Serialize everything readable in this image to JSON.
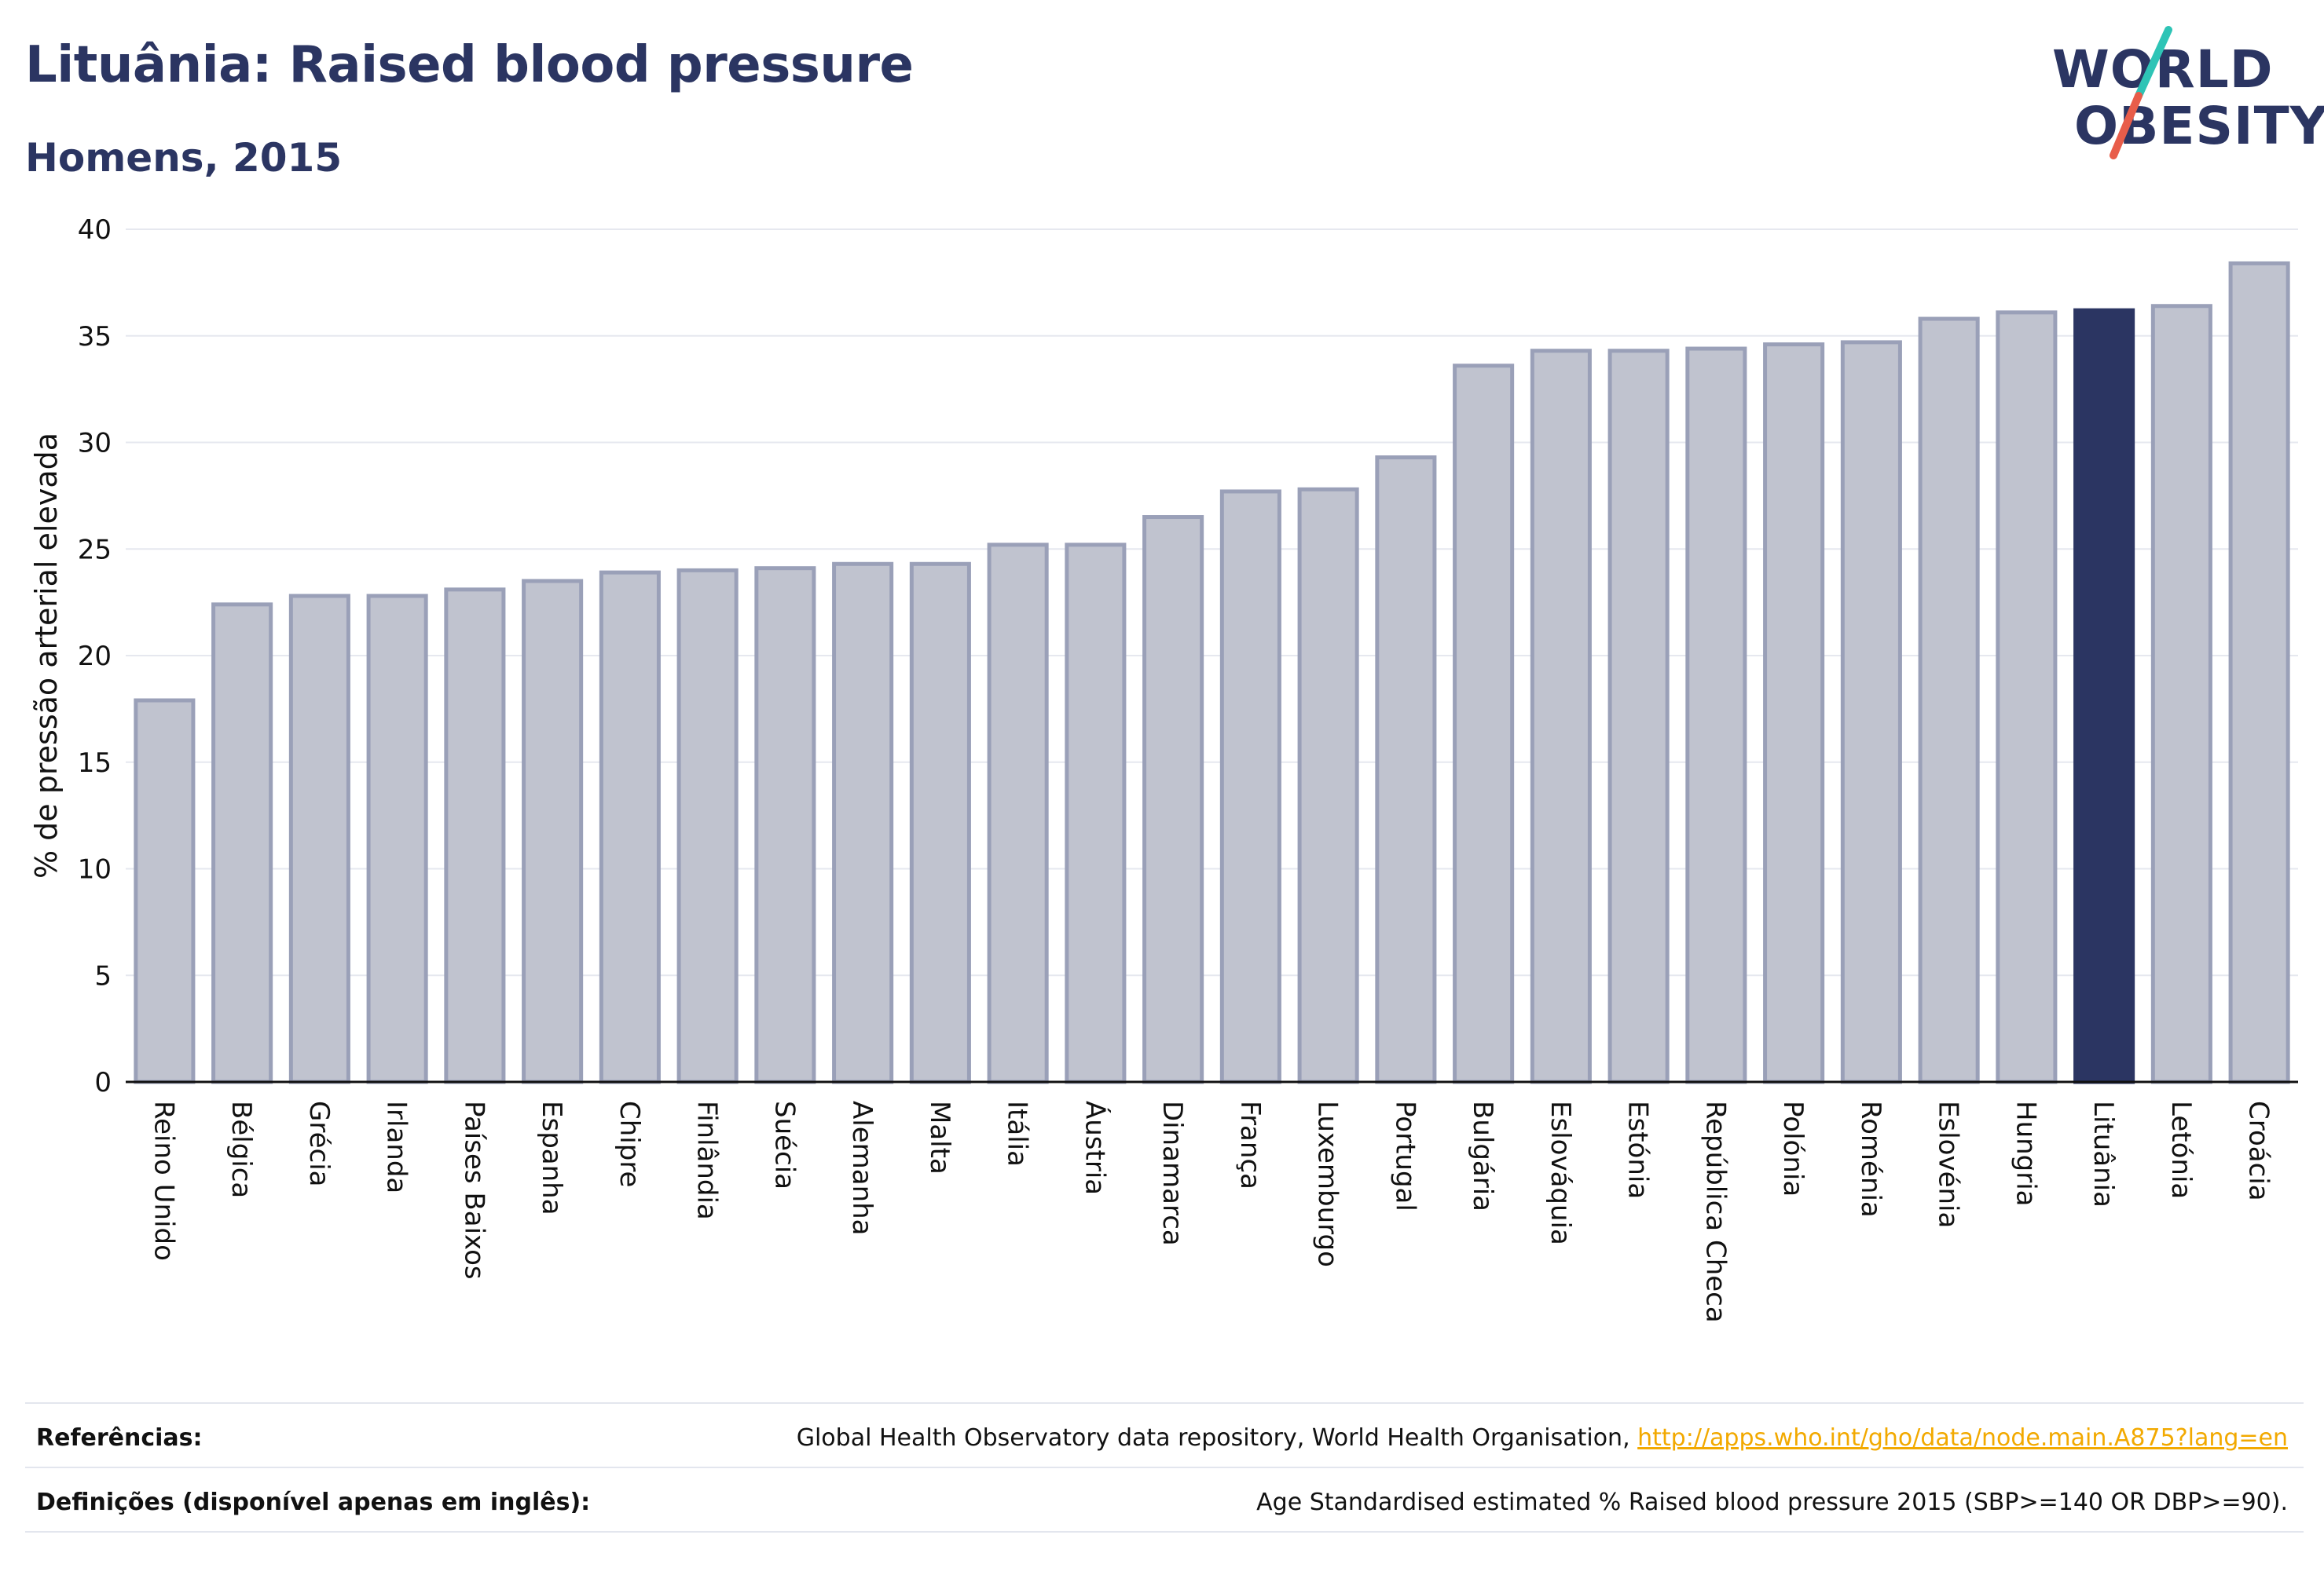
{
  "header": {
    "title": "Lituânia: Raised blood pressure",
    "subtitle": "Homens, 2015"
  },
  "logo": {
    "line1": "WORLD",
    "line2": "OBESITY",
    "accent_colors": [
      "#2ec4b6",
      "#e85d4a"
    ]
  },
  "colors": {
    "bar": "#c0c3cf",
    "bar_border": "#9aa0b8",
    "highlight": "#2b3562",
    "grid": "#e6e8ef",
    "axis": "#111111",
    "title": "#2b3562",
    "link": "#f2a900"
  },
  "chart_data": {
    "type": "bar",
    "ylabel": "% de pressão arterial elevada",
    "ylim": [
      0,
      40
    ],
    "yticks": [
      0,
      5,
      10,
      15,
      20,
      25,
      30,
      35,
      40
    ],
    "grid": true,
    "highlight": "Lituânia",
    "categories": [
      "Reino Unido",
      "Bélgica",
      "Grécia",
      "Irlanda",
      "Países Baixos",
      "Espanha",
      "Chipre",
      "Finlândia",
      "Suécia",
      "Alemanha",
      "Malta",
      "Itália",
      "Áustria",
      "Dinamarca",
      "França",
      "Luxemburgo",
      "Portugal",
      "Bulgária",
      "Eslováquia",
      "Estónia",
      "República Checa",
      "Polónia",
      "Roménia",
      "Eslovénia",
      "Hungria",
      "Lituânia",
      "Letónia",
      "Croácia"
    ],
    "values": [
      17.9,
      22.4,
      22.8,
      22.8,
      23.1,
      23.5,
      23.9,
      24.0,
      24.1,
      24.3,
      24.3,
      25.2,
      25.2,
      26.5,
      27.7,
      27.8,
      29.3,
      33.6,
      34.3,
      34.3,
      34.4,
      34.6,
      34.7,
      35.8,
      36.1,
      36.2,
      36.4,
      38.4
    ]
  },
  "footer": {
    "references_label": "Referências:",
    "references_text": "Global Health Observatory data repository, World Health Organisation, ",
    "references_link": "http://apps.who.int/gho/data/node.main.A875?lang=en",
    "definitions_label": "Definições (disponível apenas em inglês):",
    "definitions_text": "Age Standardised estimated % Raised blood pressure 2015 (SBP>=140 OR DBP>=90)."
  }
}
